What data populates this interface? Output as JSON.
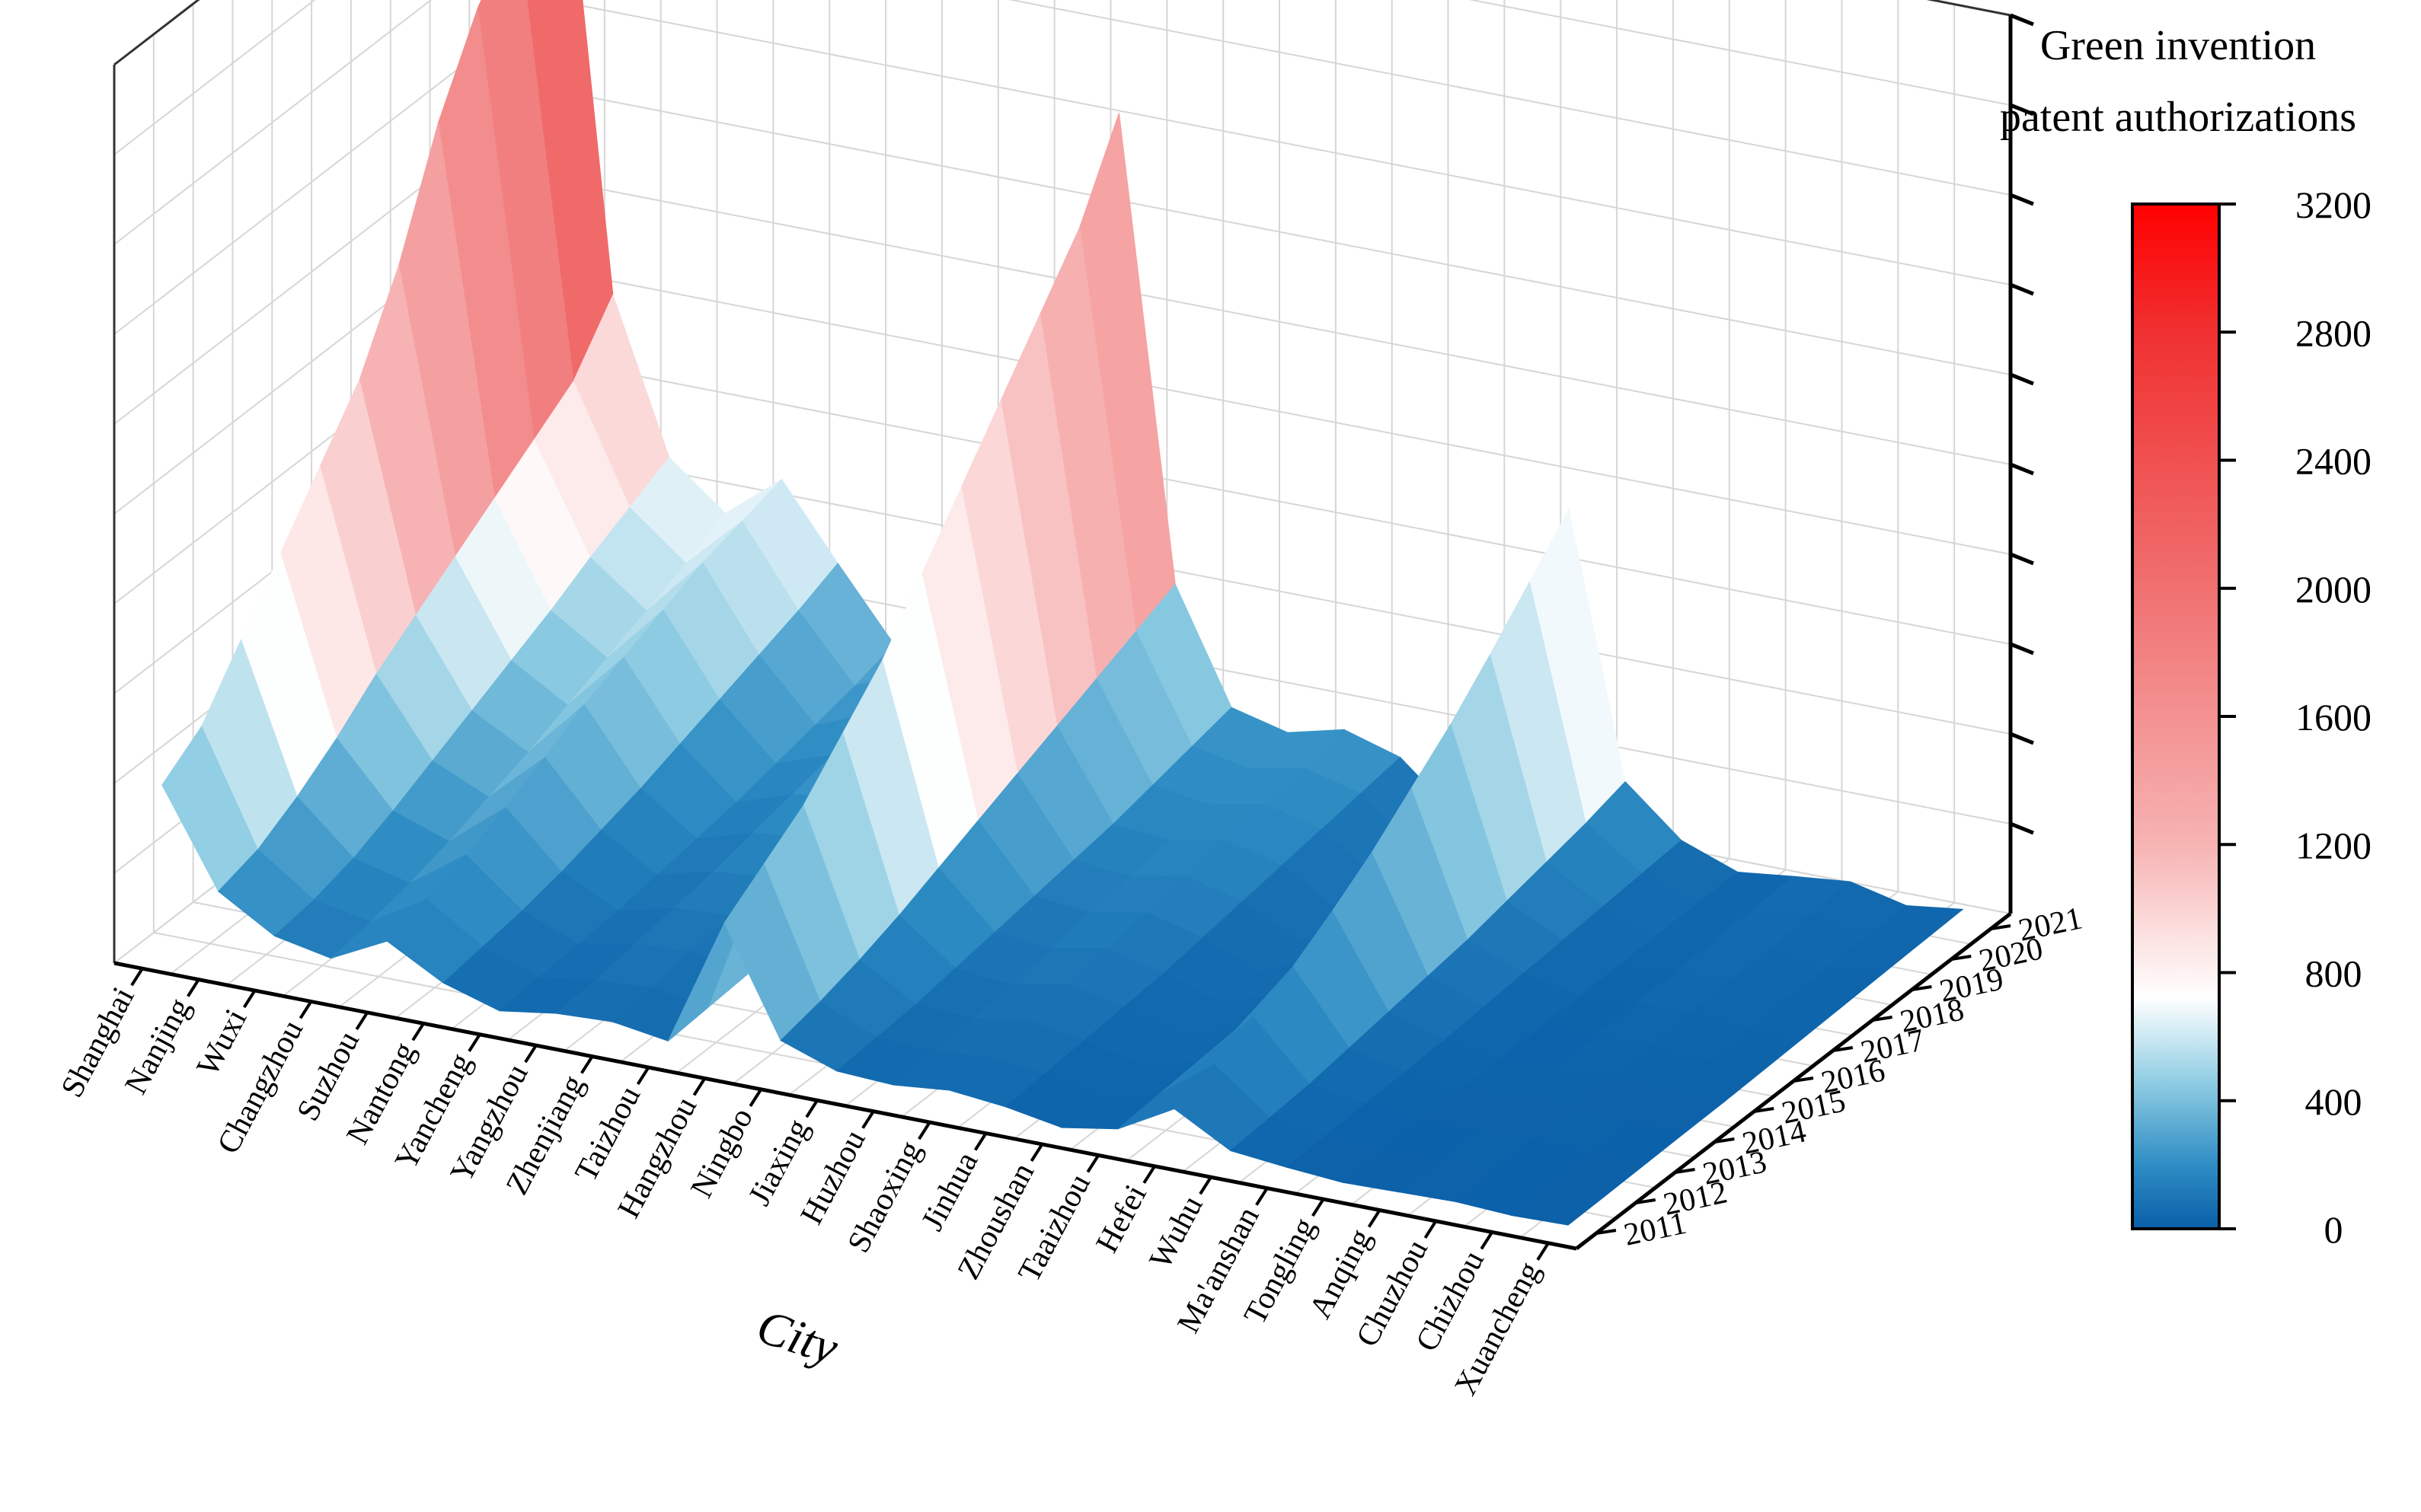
{
  "chart_data": {
    "type": "surface",
    "xlabel": "City",
    "ylabel": "",
    "colorbar_title_lines": [
      "Green invention",
      "patent authorizations"
    ],
    "cities": [
      "Shanghai",
      "Nanjing",
      "Wuxi",
      "Changzhou",
      "Suzhou",
      "Nantong",
      "Yancheng",
      "Yangzhou",
      "Zhenjiang",
      "Taizhou",
      "Hangzhou",
      "Ningbo",
      "Jiaxing",
      "Huzhou",
      "Shaoxing",
      "Jinhua",
      "Zhoushan",
      "Taaizhou",
      "Hefei",
      "Wuhu",
      "Ma'anshan",
      "Tongling",
      "Anqing",
      "Chuzhou",
      "Chizhou",
      "Xuancheng"
    ],
    "years": [
      "2011",
      "2012",
      "2013",
      "2014",
      "2015",
      "2016",
      "2017",
      "2018",
      "2019",
      "2020",
      "2021"
    ],
    "colorbar_ticks": [
      "0",
      "400",
      "800",
      "1200",
      "1600",
      "2000",
      "2400",
      "2800",
      "3200"
    ],
    "zlim": [
      0,
      3200
    ],
    "colorscale": [
      {
        "v": 0,
        "color": "#0a5fa8"
      },
      {
        "v": 200,
        "color": "#2f8dc4"
      },
      {
        "v": 450,
        "color": "#8ccbe2"
      },
      {
        "v": 720,
        "color": "#ffffff"
      },
      {
        "v": 1200,
        "color": "#f7b3b3"
      },
      {
        "v": 2000,
        "color": "#f07070"
      },
      {
        "v": 2800,
        "color": "#f03030"
      },
      {
        "v": 3200,
        "color": "#ff0000"
      }
    ],
    "values": [
      [
        600,
        700,
        900,
        1100,
        1300,
        1500,
        1800,
        2200,
        2500,
        2700,
        3200
      ],
      [
        260,
        300,
        380,
        480,
        600,
        700,
        800,
        900,
        1000,
        1100,
        1300
      ],
      [
        140,
        160,
        200,
        260,
        330,
        400,
        470,
        540,
        620,
        690,
        760
      ],
      [
        100,
        120,
        150,
        190,
        240,
        290,
        350,
        410,
        470,
        530,
        600
      ],
      [
        200,
        240,
        290,
        350,
        420,
        500,
        560,
        620,
        680,
        720,
        760
      ],
      [
        90,
        110,
        130,
        160,
        200,
        240,
        290,
        340,
        390,
        440,
        500
      ],
      [
        30,
        40,
        50,
        60,
        80,
        100,
        120,
        150,
        180,
        210,
        250
      ],
      [
        60,
        70,
        90,
        110,
        130,
        160,
        190,
        220,
        260,
        300,
        340
      ],
      [
        70,
        80,
        100,
        120,
        150,
        180,
        210,
        250,
        290,
        330,
        380
      ],
      [
        40,
        50,
        60,
        80,
        100,
        120,
        140,
        170,
        200,
        230,
        270
      ],
      [
        500,
        600,
        700,
        850,
        1000,
        1200,
        1400,
        1600,
        1800,
        2000,
        2300
      ],
      [
        120,
        150,
        190,
        240,
        300,
        360,
        420,
        480,
        540,
        600,
        660
      ],
      [
        50,
        60,
        70,
        90,
        110,
        130,
        150,
        170,
        200,
        230,
        260
      ],
      [
        40,
        50,
        60,
        70,
        90,
        110,
        130,
        150,
        170,
        190,
        210
      ],
      [
        60,
        70,
        90,
        110,
        130,
        150,
        170,
        190,
        210,
        230,
        260
      ],
      [
        40,
        50,
        60,
        70,
        80,
        100,
        120,
        140,
        160,
        180,
        200
      ],
      [
        5,
        8,
        10,
        12,
        15,
        18,
        20,
        22,
        25,
        28,
        30
      ],
      [
        40,
        50,
        60,
        70,
        80,
        100,
        120,
        140,
        160,
        180,
        200
      ],
      [
        150,
        200,
        260,
        330,
        420,
        520,
        640,
        760,
        900,
        1050,
        1200
      ],
      [
        40,
        50,
        60,
        80,
        100,
        120,
        140,
        170,
        200,
        230,
        270
      ],
      [
        20,
        25,
        30,
        35,
        40,
        50,
        60,
        70,
        80,
        90,
        100
      ],
      [
        5,
        8,
        10,
        12,
        14,
        16,
        18,
        20,
        22,
        24,
        26
      ],
      [
        10,
        12,
        15,
        18,
        20,
        25,
        30,
        35,
        40,
        45,
        50
      ],
      [
        15,
        18,
        20,
        25,
        30,
        35,
        40,
        45,
        50,
        60,
        70
      ],
      [
        5,
        6,
        8,
        10,
        12,
        14,
        16,
        18,
        20,
        22,
        24
      ],
      [
        10,
        12,
        15,
        18,
        20,
        25,
        30,
        35,
        40,
        45,
        50
      ]
    ]
  }
}
